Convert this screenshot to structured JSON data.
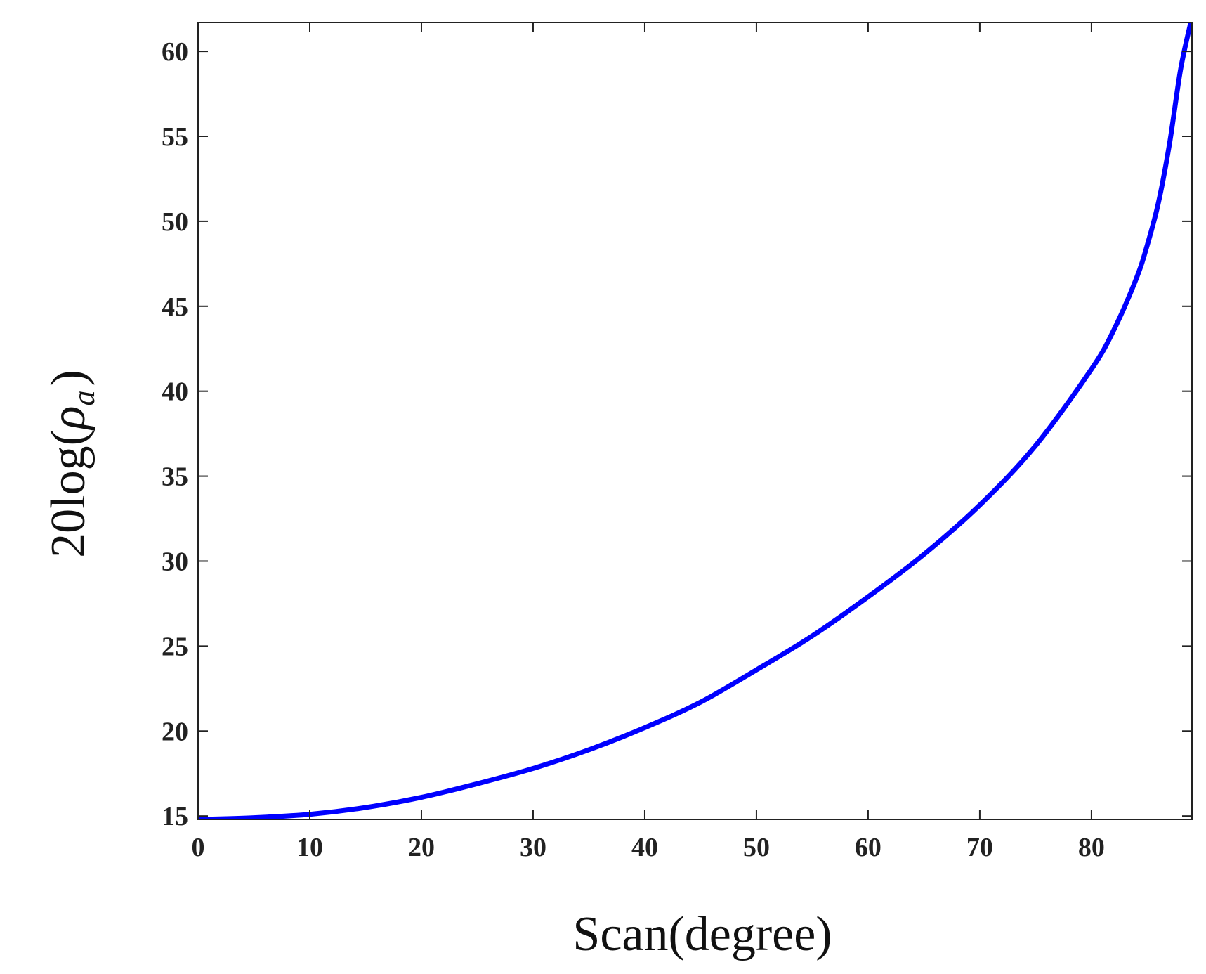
{
  "chart_data": {
    "type": "line",
    "title": "",
    "xlabel": "Scan(degree)",
    "ylabel": {
      "prefix": "20log(",
      "symbol": "ρ",
      "subscript": "a",
      "suffix": ")"
    },
    "xlim": [
      0,
      89
    ],
    "ylim": [
      14.8,
      61.7
    ],
    "xticks": [
      0,
      10,
      20,
      30,
      40,
      50,
      60,
      70,
      80
    ],
    "yticks": [
      15,
      20,
      25,
      30,
      35,
      40,
      45,
      50,
      55,
      60
    ],
    "grid": false,
    "legend": "none",
    "series": [
      {
        "color": "#0000ff",
        "x": [
          0,
          5,
          10,
          15,
          20,
          25,
          30,
          35,
          40,
          45,
          50,
          55,
          60,
          65,
          70,
          75,
          80,
          82,
          84,
          85,
          86,
          87,
          88,
          89
        ],
        "y": [
          14.8,
          14.9,
          15.1,
          15.5,
          16.1,
          16.9,
          17.8,
          18.9,
          20.2,
          21.7,
          23.6,
          25.6,
          27.9,
          30.4,
          33.3,
          36.8,
          41.3,
          43.6,
          46.6,
          48.6,
          51.1,
          54.6,
          59.0,
          62.0
        ]
      }
    ]
  }
}
